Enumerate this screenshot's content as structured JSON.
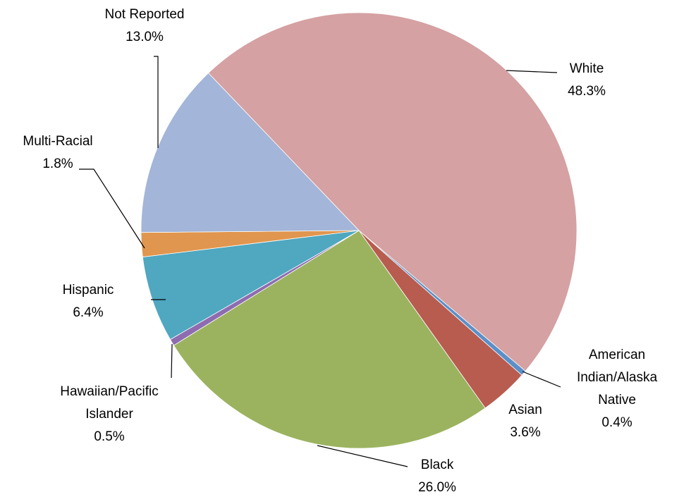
{
  "chart_data": {
    "type": "pie",
    "categories": [
      "White",
      "American Indian/Alaska Native",
      "Asian",
      "Black",
      "Hawaiian/Pacific Islander",
      "Hispanic",
      "Multi-Racial",
      "Not Reported"
    ],
    "values": [
      48.3,
      0.4,
      3.6,
      26.0,
      0.5,
      6.4,
      1.8,
      13.0
    ],
    "value_labels": [
      "48.3%",
      "0.4%",
      "3.6%",
      "26.0%",
      "0.5%",
      "6.4%",
      "1.8%",
      "13.0%"
    ],
    "colors": [
      "#d5a1a2",
      "#5b8fc7",
      "#b85c50",
      "#9bb35f",
      "#8e6cb0",
      "#4fa7c0",
      "#e0964e",
      "#a3b5d8"
    ]
  }
}
